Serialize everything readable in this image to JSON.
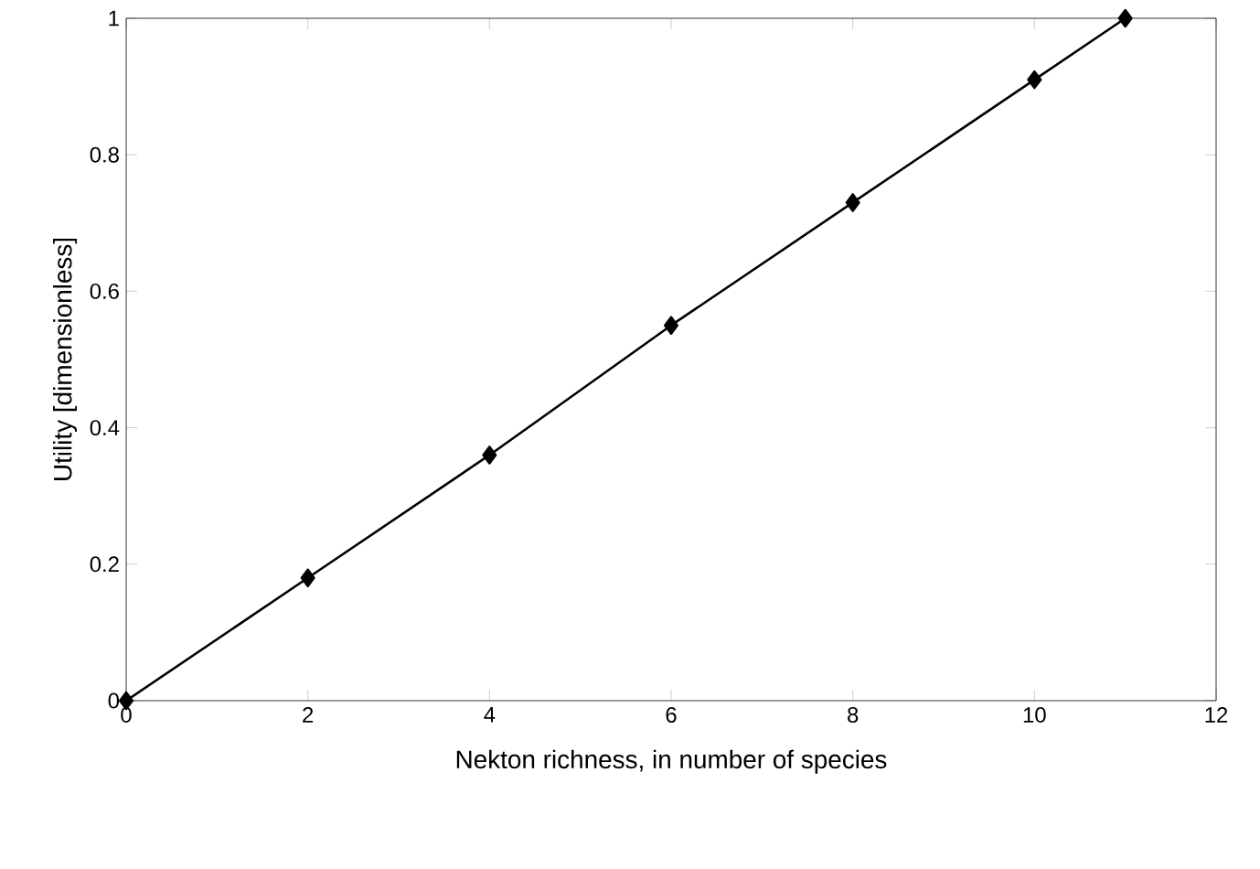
{
  "chart_data": {
    "type": "line",
    "xlabel": "Nekton richness, in number of species",
    "ylabel": "Utility [dimensionless]",
    "x": [
      0,
      2,
      4,
      6,
      8,
      10,
      11
    ],
    "values": [
      0,
      0.18,
      0.36,
      0.55,
      0.73,
      0.91,
      1
    ],
    "color": "#000000",
    "marker": "diamond",
    "line_style": "solid",
    "xlim": [
      0,
      12
    ],
    "xticks": [
      0,
      2,
      4,
      6,
      8,
      10,
      12
    ],
    "ylim": [
      0,
      1
    ],
    "yticks": [
      0,
      0.2,
      0.4,
      0.6,
      0.8,
      1
    ]
  }
}
